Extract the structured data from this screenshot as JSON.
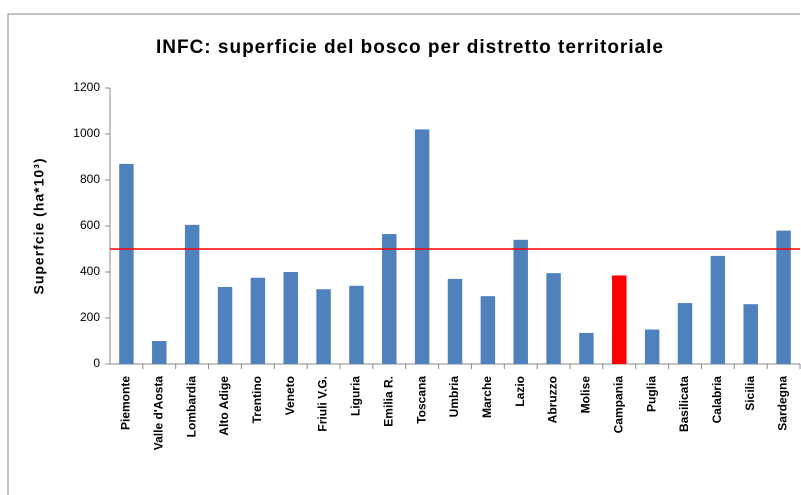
{
  "chart_data": {
    "type": "bar",
    "title": "INFC: superficie del bosco per distretto territoriale",
    "y_label": "Superfcie (ha*10³)",
    "categories": [
      "Piemonte",
      "Valle d'Aosta",
      "Lombardia",
      "Alto Adige",
      "Trentino",
      "Veneto",
      "Friuli V.G.",
      "Liguria",
      "Emilia R.",
      "Toscana",
      "Umbria",
      "Marche",
      "Lazio",
      "Abruzzo",
      "Molise",
      "Campania",
      "Puglia",
      "Basilicata",
      "Calabria",
      "Sicilia",
      "Sardegna"
    ],
    "values": [
      870,
      100,
      605,
      335,
      375,
      400,
      325,
      340,
      565,
      1020,
      370,
      295,
      540,
      395,
      135,
      385,
      150,
      265,
      470,
      260,
      580
    ],
    "colors": [
      "#4f81bd",
      "#4f81bd",
      "#4f81bd",
      "#4f81bd",
      "#4f81bd",
      "#4f81bd",
      "#4f81bd",
      "#4f81bd",
      "#4f81bd",
      "#4f81bd",
      "#4f81bd",
      "#4f81bd",
      "#4f81bd",
      "#4f81bd",
      "#4f81bd",
      "#ff0000",
      "#4f81bd",
      "#4f81bd",
      "#4f81bd",
      "#4f81bd",
      "#4f81bd"
    ],
    "reference_line": {
      "value": 500,
      "color": "#ff0000"
    },
    "ylim": [
      0,
      1200
    ],
    "yticks": [
      0,
      200,
      400,
      600,
      800,
      1000,
      1200
    ],
    "grid": false
  }
}
